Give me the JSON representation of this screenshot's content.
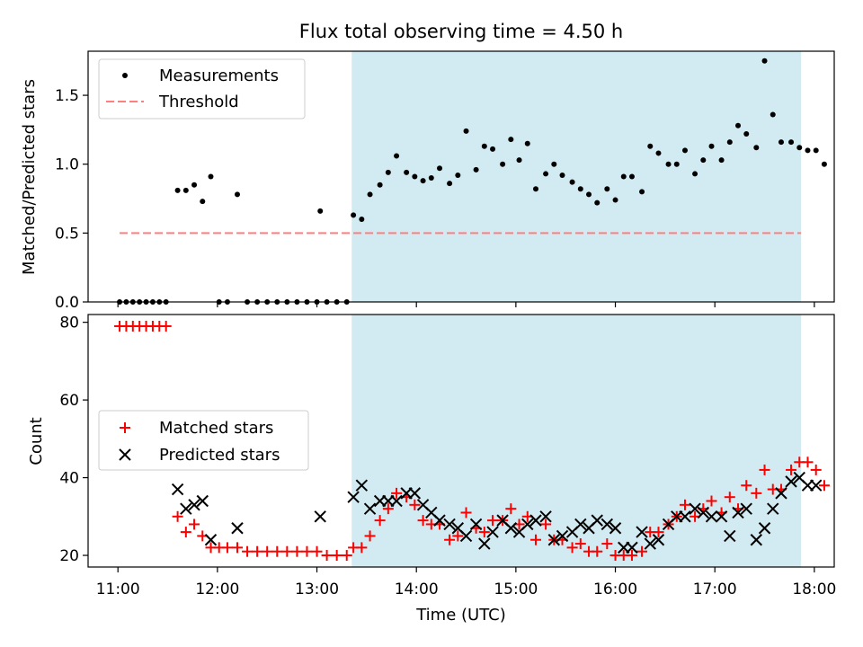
{
  "chart_data": {
    "title": "Flux total observing time = 4.50 h",
    "shaded_region": {
      "start": "13:21",
      "end": "17:52",
      "color": "#add8e6"
    },
    "x_ticks": [
      "11:00",
      "12:00",
      "13:00",
      "14:00",
      "15:00",
      "16:00",
      "17:00",
      "18:00"
    ],
    "xlim": [
      "10:42",
      "18:12"
    ],
    "xlabel": "Time (UTC)",
    "panels": [
      {
        "type": "scatter",
        "ylabel": "Matched/Predicted stars",
        "ylim": [
          0,
          1.82
        ],
        "y_ticks": [
          "0.0",
          "0.5",
          "1.0",
          "1.5"
        ],
        "legend": {
          "placement": "upper-left",
          "entries": [
            "Measurements",
            "Threshold"
          ]
        },
        "series": [
          {
            "name": "Measurements",
            "color": "#000000",
            "marker": "dot",
            "points": [
              [
                "11:01",
                0
              ],
              [
                "11:05",
                0
              ],
              [
                "11:09",
                0
              ],
              [
                "11:13",
                0
              ],
              [
                "11:17",
                0
              ],
              [
                "11:21",
                0
              ],
              [
                "11:25",
                0
              ],
              [
                "11:29",
                0
              ],
              [
                "11:36",
                0.81
              ],
              [
                "11:41",
                0.81
              ],
              [
                "11:46",
                0.85
              ],
              [
                "11:51",
                0.73
              ],
              [
                "11:56",
                0.91
              ],
              [
                "12:01",
                0
              ],
              [
                "12:06",
                0
              ],
              [
                "12:12",
                0.78
              ],
              [
                "12:18",
                0
              ],
              [
                "12:24",
                0
              ],
              [
                "12:30",
                0
              ],
              [
                "12:36",
                0
              ],
              [
                "12:42",
                0
              ],
              [
                "12:48",
                0
              ],
              [
                "12:54",
                0
              ],
              [
                "13:00",
                0
              ],
              [
                "13:06",
                0
              ],
              [
                "13:12",
                0
              ],
              [
                "13:18",
                0
              ],
              [
                "13:02",
                0.66
              ],
              [
                "13:22",
                0.63
              ],
              [
                "13:27",
                0.6
              ],
              [
                "13:32",
                0.78
              ],
              [
                "13:38",
                0.85
              ],
              [
                "13:43",
                0.94
              ],
              [
                "13:48",
                1.06
              ],
              [
                "13:54",
                0.94
              ],
              [
                "13:59",
                0.91
              ],
              [
                "14:04",
                0.88
              ],
              [
                "14:09",
                0.9
              ],
              [
                "14:14",
                0.97
              ],
              [
                "14:20",
                0.86
              ],
              [
                "14:25",
                0.92
              ],
              [
                "14:30",
                1.24
              ],
              [
                "14:36",
                0.96
              ],
              [
                "14:41",
                1.13
              ],
              [
                "14:46",
                1.11
              ],
              [
                "14:52",
                1.0
              ],
              [
                "14:57",
                1.18
              ],
              [
                "15:02",
                1.03
              ],
              [
                "15:07",
                1.15
              ],
              [
                "15:12",
                0.82
              ],
              [
                "15:18",
                0.93
              ],
              [
                "15:23",
                1.0
              ],
              [
                "15:28",
                0.92
              ],
              [
                "15:34",
                0.87
              ],
              [
                "15:39",
                0.82
              ],
              [
                "15:44",
                0.78
              ],
              [
                "15:49",
                0.72
              ],
              [
                "15:55",
                0.82
              ],
              [
                "16:00",
                0.74
              ],
              [
                "16:05",
                0.91
              ],
              [
                "16:10",
                0.91
              ],
              [
                "16:16",
                0.8
              ],
              [
                "16:21",
                1.13
              ],
              [
                "16:26",
                1.08
              ],
              [
                "16:32",
                1.0
              ],
              [
                "16:37",
                1.0
              ],
              [
                "16:42",
                1.1
              ],
              [
                "16:48",
                0.93
              ],
              [
                "16:53",
                1.03
              ],
              [
                "16:58",
                1.13
              ],
              [
                "17:04",
                1.03
              ],
              [
                "17:09",
                1.16
              ],
              [
                "17:14",
                1.28
              ],
              [
                "17:19",
                1.22
              ],
              [
                "17:25",
                1.12
              ],
              [
                "17:30",
                1.75
              ],
              [
                "17:35",
                1.36
              ],
              [
                "17:40",
                1.16
              ],
              [
                "17:46",
                1.16
              ],
              [
                "17:51",
                1.12
              ],
              [
                "17:56",
                1.1
              ],
              [
                "18:01",
                1.1
              ],
              [
                "18:06",
                1.0
              ]
            ]
          },
          {
            "name": "Threshold",
            "color": "#ff7f7f",
            "style": "dashed",
            "y": 0.5,
            "x_range": [
              "11:01",
              "17:52"
            ]
          }
        ]
      },
      {
        "type": "scatter",
        "ylabel": "Count",
        "ylim": [
          17,
          82
        ],
        "y_ticks": [
          "20",
          "40",
          "60",
          "80"
        ],
        "legend": {
          "placement": "center-left",
          "entries": [
            "Matched stars",
            "Predicted stars"
          ]
        },
        "series": [
          {
            "name": "Matched stars",
            "color": "#ff0000",
            "marker": "plus",
            "points": [
              [
                "11:01",
                79
              ],
              [
                "11:05",
                79
              ],
              [
                "11:09",
                79
              ],
              [
                "11:13",
                79
              ],
              [
                "11:17",
                79
              ],
              [
                "11:21",
                79
              ],
              [
                "11:25",
                79
              ],
              [
                "11:29",
                79
              ],
              [
                "11:36",
                30
              ],
              [
                "11:41",
                26
              ],
              [
                "11:46",
                28
              ],
              [
                "11:51",
                25
              ],
              [
                "11:56",
                22
              ],
              [
                "12:01",
                22
              ],
              [
                "12:06",
                22
              ],
              [
                "12:12",
                22
              ],
              [
                "12:18",
                21
              ],
              [
                "12:24",
                21
              ],
              [
                "12:30",
                21
              ],
              [
                "12:36",
                21
              ],
              [
                "12:42",
                21
              ],
              [
                "12:48",
                21
              ],
              [
                "12:54",
                21
              ],
              [
                "13:00",
                21
              ],
              [
                "13:06",
                20
              ],
              [
                "13:12",
                20
              ],
              [
                "13:18",
                20
              ],
              [
                "13:22",
                22
              ],
              [
                "13:27",
                22
              ],
              [
                "13:32",
                25
              ],
              [
                "13:38",
                29
              ],
              [
                "13:43",
                32
              ],
              [
                "13:48",
                36
              ],
              [
                "13:54",
                35
              ],
              [
                "13:59",
                33
              ],
              [
                "14:04",
                29
              ],
              [
                "14:09",
                28
              ],
              [
                "14:14",
                28
              ],
              [
                "14:20",
                24
              ],
              [
                "14:25",
                25
              ],
              [
                "14:30",
                31
              ],
              [
                "14:36",
                27
              ],
              [
                "14:41",
                26
              ],
              [
                "14:46",
                29
              ],
              [
                "14:52",
                29
              ],
              [
                "14:57",
                32
              ],
              [
                "15:02",
                28
              ],
              [
                "15:07",
                30
              ],
              [
                "15:12",
                24
              ],
              [
                "15:18",
                28
              ],
              [
                "15:23",
                24
              ],
              [
                "15:28",
                24
              ],
              [
                "15:34",
                22
              ],
              [
                "15:39",
                23
              ],
              [
                "15:44",
                21
              ],
              [
                "15:49",
                21
              ],
              [
                "15:55",
                23
              ],
              [
                "16:00",
                20
              ],
              [
                "16:05",
                20
              ],
              [
                "16:10",
                20
              ],
              [
                "16:16",
                21
              ],
              [
                "16:21",
                26
              ],
              [
                "16:26",
                26
              ],
              [
                "16:32",
                28
              ],
              [
                "16:37",
                30
              ],
              [
                "16:42",
                33
              ],
              [
                "16:48",
                30
              ],
              [
                "16:53",
                32
              ],
              [
                "16:58",
                34
              ],
              [
                "17:04",
                31
              ],
              [
                "17:09",
                35
              ],
              [
                "17:14",
                32
              ],
              [
                "17:19",
                38
              ],
              [
                "17:25",
                36
              ],
              [
                "17:30",
                42
              ],
              [
                "17:35",
                37
              ],
              [
                "17:40",
                37
              ],
              [
                "17:46",
                42
              ],
              [
                "17:51",
                44
              ],
              [
                "17:56",
                44
              ],
              [
                "18:01",
                42
              ],
              [
                "18:06",
                38
              ]
            ]
          },
          {
            "name": "Predicted stars",
            "color": "#000000",
            "marker": "x",
            "points": [
              [
                "11:36",
                37
              ],
              [
                "11:41",
                32
              ],
              [
                "11:46",
                33
              ],
              [
                "11:51",
                34
              ],
              [
                "11:56",
                24
              ],
              [
                "12:12",
                27
              ],
              [
                "13:02",
                30
              ],
              [
                "13:22",
                35
              ],
              [
                "13:27",
                38
              ],
              [
                "13:32",
                32
              ],
              [
                "13:38",
                34
              ],
              [
                "13:43",
                34
              ],
              [
                "13:48",
                34
              ],
              [
                "13:54",
                36
              ],
              [
                "13:59",
                36
              ],
              [
                "14:04",
                33
              ],
              [
                "14:09",
                31
              ],
              [
                "14:14",
                29
              ],
              [
                "14:20",
                28
              ],
              [
                "14:25",
                27
              ],
              [
                "14:30",
                25
              ],
              [
                "14:36",
                28
              ],
              [
                "14:41",
                23
              ],
              [
                "14:46",
                26
              ],
              [
                "14:52",
                29
              ],
              [
                "14:57",
                27
              ],
              [
                "15:02",
                26
              ],
              [
                "15:07",
                28
              ],
              [
                "15:12",
                29
              ],
              [
                "15:18",
                30
              ],
              [
                "15:23",
                24
              ],
              [
                "15:28",
                25
              ],
              [
                "15:34",
                26
              ],
              [
                "15:39",
                28
              ],
              [
                "15:44",
                27
              ],
              [
                "15:49",
                29
              ],
              [
                "15:55",
                28
              ],
              [
                "16:00",
                27
              ],
              [
                "16:05",
                22
              ],
              [
                "16:10",
                22
              ],
              [
                "16:16",
                26
              ],
              [
                "16:21",
                23
              ],
              [
                "16:26",
                24
              ],
              [
                "16:32",
                28
              ],
              [
                "16:37",
                30
              ],
              [
                "16:42",
                30
              ],
              [
                "16:48",
                32
              ],
              [
                "16:53",
                31
              ],
              [
                "16:58",
                30
              ],
              [
                "17:04",
                30
              ],
              [
                "17:09",
                25
              ],
              [
                "17:14",
                31
              ],
              [
                "17:19",
                32
              ],
              [
                "17:25",
                24
              ],
              [
                "17:30",
                27
              ],
              [
                "17:35",
                32
              ],
              [
                "17:40",
                36
              ],
              [
                "17:46",
                39
              ],
              [
                "17:51",
                40
              ],
              [
                "17:56",
                38
              ],
              [
                "18:01",
                38
              ]
            ]
          }
        ]
      }
    ]
  }
}
